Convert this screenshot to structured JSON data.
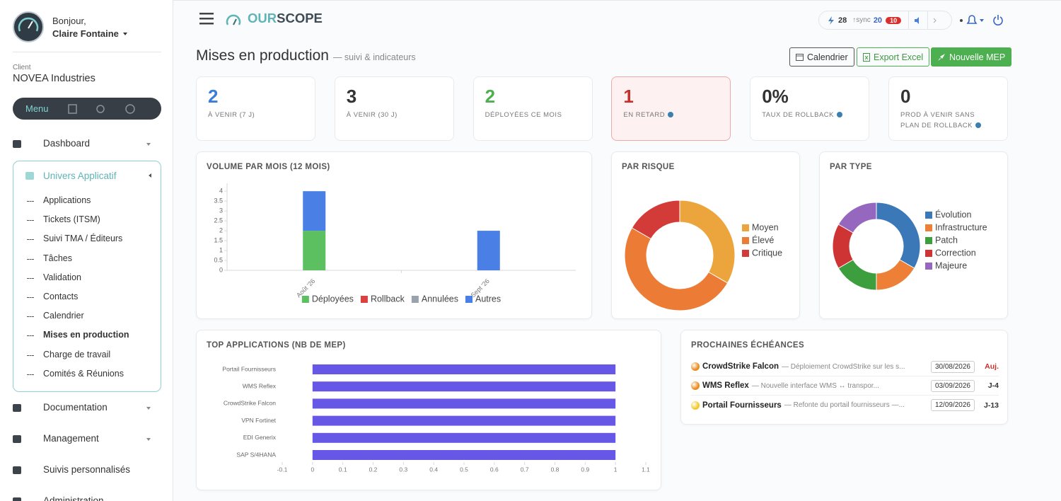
{
  "sidebar": {
    "greeting": "Bonjour,",
    "user": "Claire Fontaine",
    "client_label": "Client",
    "client": "NOVEA Industries",
    "menu": "Menu",
    "nav": [
      {
        "label": "Dashboard"
      },
      {
        "label": "Univers Applicatif",
        "children": [
          "Applications",
          "Tickets (ITSM)",
          "Suivi TMA / Éditeurs",
          "Tâches",
          "Validation",
          "Contacts",
          "Calendrier",
          "Mises en production",
          "Charge de travail",
          "Comités & Réunions"
        ]
      },
      {
        "label": "Documentation"
      },
      {
        "label": "Management"
      },
      {
        "label": "Suivis personnalisés"
      },
      {
        "label": "Administration"
      }
    ]
  },
  "header": {
    "brand_a": "OUR",
    "brand_b": "SCOPE",
    "count": "28",
    "sync_label": "↑sync",
    "sync": "20",
    "badge": "10"
  },
  "page": {
    "title": "Mises en production",
    "subtitle": "— suivi & indicateurs",
    "buttons": [
      "Calendrier",
      "Export Excel",
      "Nouvelle MEP"
    ]
  },
  "kpis": [
    {
      "value": "2",
      "label": "À VENIR (7 J)"
    },
    {
      "value": "3",
      "label": "À VENIR (30 J)"
    },
    {
      "value": "2",
      "label": "DÉPLOYÉES CE MOIS"
    },
    {
      "value": "1",
      "label": "EN RETARD"
    },
    {
      "value": "0%",
      "label": "TAUX DE ROLLBACK"
    },
    {
      "value": "0",
      "label": "PROD À VENIR SANS PLAN DE ROLLBACK"
    }
  ],
  "chart_data": [
    {
      "type": "stacked-bar",
      "title": "VOLUME PAR MOIS (12 MOIS)",
      "categories": [
        "Août '26",
        "Sept '26"
      ],
      "series": [
        {
          "name": "Déployées",
          "color": "#5cbf60",
          "values": [
            2,
            0
          ]
        },
        {
          "name": "Rollback",
          "color": "#d9423f",
          "values": [
            0,
            0
          ]
        },
        {
          "name": "Annulées",
          "color": "#9aa3ad",
          "values": [
            0,
            0
          ]
        },
        {
          "name": "Autres",
          "color": "#4a7fe6",
          "values": [
            2,
            2
          ]
        }
      ],
      "ylim": [
        0,
        4.4
      ],
      "yticks": [
        0,
        0.5,
        1,
        1.5,
        2,
        2.5,
        3,
        3.5,
        4
      ],
      "legend": "bottom"
    },
    {
      "type": "doughnut",
      "title": "PAR RISQUE",
      "categories": [
        "Moyen",
        "Élevé",
        "Critique"
      ],
      "values": [
        2,
        3,
        1
      ],
      "colors": [
        "#eca53c",
        "#ec7b35",
        "#d33b39"
      ],
      "legend": "right"
    },
    {
      "type": "doughnut",
      "title": "PAR TYPE",
      "categories": [
        "Évolution",
        "Infrastructure",
        "Patch",
        "Correction",
        "Majeure"
      ],
      "values": [
        2,
        1,
        1,
        1,
        1
      ],
      "colors": [
        "#3a78b8",
        "#ee7f36",
        "#3d9e3d",
        "#cf3434",
        "#9567bf"
      ],
      "legend": "right"
    },
    {
      "type": "hbar",
      "title": "TOP APPLICATIONS (NB DE MEP)",
      "categories": [
        "Portail Fournisseurs",
        "WMS Reflex",
        "CrowdStrike Falcon",
        "VPN Fortinet",
        "EDI Generix",
        "SAP S/4HANA"
      ],
      "values": [
        1,
        1,
        1,
        1,
        1,
        1
      ],
      "color": "#6657e6",
      "xlim": [
        -0.1,
        1.1
      ],
      "xticks": [
        -0.1,
        0,
        0.1,
        0.2,
        0.3,
        0.4,
        0.5,
        0.6,
        0.7,
        0.8,
        0.9,
        1,
        1.1
      ]
    }
  ],
  "deadlines": {
    "title": "PROCHAINES ÉCHÉANCES",
    "items": [
      {
        "name": "CrowdStrike Falcon",
        "desc": "— Déploiement CrowdStrike sur les s...",
        "date": "30/08/2026",
        "due": "Auj."
      },
      {
        "name": "WMS Reflex",
        "desc": "— Nouvelle interface WMS ↔ transpor...",
        "date": "03/09/2026",
        "due": "J-4"
      },
      {
        "name": "Portail Fournisseurs",
        "desc": "— Refonte du portail fournisseurs —...",
        "date": "12/09/2026",
        "due": "J-13"
      }
    ]
  }
}
